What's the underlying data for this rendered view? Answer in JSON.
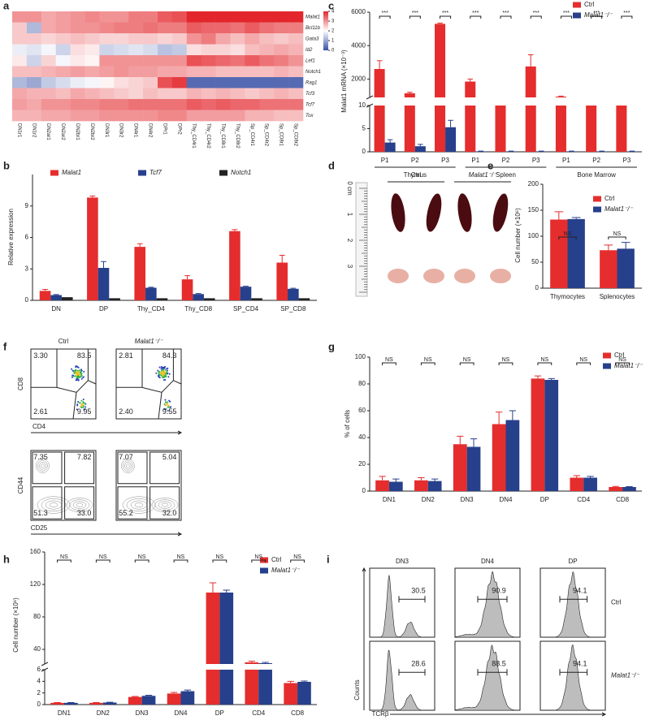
{
  "panel_labels": [
    "a",
    "b",
    "c",
    "d",
    "e",
    "f",
    "g",
    "h",
    "i"
  ],
  "chart_data": [
    {
      "type": "heatmap",
      "rows": [
        "Malat1",
        "Bcl11b",
        "Gata3",
        "Id2",
        "Lef1",
        "Notch1",
        "Rag1",
        "Tcf3",
        "Tcf7",
        "Tox"
      ],
      "columns": [
        "DN1r1",
        "DN1r2",
        "DN2ar1",
        "DN2ar2",
        "DN2br1",
        "DN2br2",
        "DN3r1",
        "DN3r2",
        "DN4r1",
        "DN4r2",
        "DPr1",
        "DPr2",
        "Thy_CD4r1",
        "Thy_CD4r2",
        "Thy_CD8r1",
        "Thy_CD8r2",
        "Sp_CD4r1",
        "Sp_CD4r2",
        "Sp_CD8r1",
        "Sp_CD8r2"
      ],
      "values": [
        [
          3,
          3,
          2.8,
          2.9,
          3,
          3.1,
          3,
          3,
          3.2,
          3.2,
          3.5,
          3.6,
          4,
          4,
          4,
          4,
          4,
          4,
          4,
          4
        ],
        [
          2.5,
          1.2,
          2.8,
          2.9,
          3,
          3,
          3.1,
          3.2,
          3.2,
          3.3,
          3.2,
          3.2,
          3.5,
          3.4,
          3.4,
          3.3,
          3.5,
          3.3,
          3.2,
          3.2
        ],
        [
          2.5,
          2.5,
          2.4,
          2.5,
          2.6,
          2.5,
          2.4,
          2.4,
          2.5,
          2.5,
          2.4,
          2.5,
          3,
          3.2,
          2.8,
          2.6,
          2.8,
          2.6,
          2.5,
          2.6
        ],
        [
          1.8,
          1.7,
          1.9,
          1.5,
          2.3,
          2.2,
          1.5,
          1.6,
          1.7,
          1.6,
          1.3,
          1.4,
          2.3,
          2.4,
          2.4,
          2.3,
          2.6,
          2.7,
          2.8,
          2.7
        ],
        [
          2.2,
          1.5,
          2.4,
          1.9,
          2.2,
          2.1,
          3,
          3,
          3,
          3,
          3,
          3,
          3.6,
          3.5,
          3.4,
          3.3,
          3.5,
          3.3,
          3.2,
          3
        ],
        [
          2.6,
          2.6,
          2.7,
          2.8,
          2.9,
          2.8,
          2.9,
          3,
          2.9,
          2.9,
          2.8,
          2.8,
          2.7,
          2.7,
          2.6,
          2.6,
          2.6,
          2.6,
          2.7,
          2.6
        ],
        [
          1.2,
          1,
          1.4,
          1.6,
          1.8,
          1.9,
          2.1,
          2.3,
          2.4,
          2.5,
          3.6,
          3.8,
          0.3,
          0.3,
          0.3,
          0.3,
          0.3,
          0.3,
          0.3,
          0.3
        ],
        [
          2.8,
          2.7,
          2.7,
          2.6,
          2.8,
          2.7,
          2.6,
          2.5,
          2.4,
          2.6,
          2.5,
          2.5,
          2.7,
          2.6,
          2.7,
          2.6,
          2.5,
          2.6,
          2.7,
          2.6
        ],
        [
          2.9,
          2.8,
          3,
          3,
          3.1,
          3.1,
          3.2,
          3.2,
          3.3,
          3.3,
          3.3,
          3.3,
          3.5,
          3.4,
          3.5,
          3.4,
          3.4,
          3.3,
          3.3,
          3.3
        ],
        [
          2.7,
          2.7,
          2.8,
          2.8,
          2.9,
          2.9,
          3,
          3,
          3,
          3,
          3.1,
          3.1,
          2.9,
          2.9,
          2.9,
          2.9,
          2.7,
          2.7,
          2.6,
          2.6
        ]
      ],
      "zlim": [
        0,
        4
      ],
      "zticks": [
        0,
        1,
        2,
        3,
        4
      ],
      "colors": [
        "#3850a5",
        "#ffffff",
        "#e3262b"
      ]
    },
    {
      "type": "bar",
      "y_label": "Relative expression",
      "categories": [
        "DN",
        "DP",
        "Thy_CD4",
        "Thy_CD8",
        "SP_CD4",
        "SP_CD8"
      ],
      "series": [
        {
          "name": "Malat1",
          "color": "#e52d2d",
          "values": [
            0.9,
            9.8,
            5.1,
            2.0,
            6.6,
            3.6
          ],
          "errors": [
            0.15,
            0.15,
            0.3,
            0.35,
            0.15,
            0.7
          ]
        },
        {
          "name": "Tcf7",
          "color": "#27408b",
          "values": [
            0.5,
            3.1,
            1.2,
            0.6,
            1.3,
            1.1
          ],
          "errors": [
            0.05,
            0.6,
            0.05,
            0.05,
            0.05,
            0.05
          ]
        },
        {
          "name": "Notch1",
          "color": "#222222",
          "values": [
            0.3,
            0.2,
            0.2,
            0.2,
            0.2,
            0.2
          ]
        }
      ],
      "ylim": [
        0,
        12
      ],
      "yticks": [
        0,
        3,
        6,
        9
      ]
    },
    {
      "type": "bar",
      "y_label": "Malat1 mRNA (×10⁻³)",
      "categories": [
        "P1",
        "P2",
        "P3",
        "P1",
        "P2",
        "P3",
        "P1",
        "P2",
        "P3"
      ],
      "groups": [
        "Thymus",
        "Spleen",
        "Bone Marrow"
      ],
      "series": [
        {
          "name": "Ctrl",
          "color": "#e52d2d",
          "values": [
            2600,
            1150,
            5300,
            1850,
            650,
            2750,
            950,
            850,
            750
          ],
          "errors": [
            500,
            60,
            50,
            150,
            100,
            700,
            30,
            20,
            30
          ]
        },
        {
          "name": "Malat1⁻/⁻",
          "color": "#27408b",
          "values": [
            2,
            1.2,
            5.3,
            0.1,
            0.1,
            0.1,
            0.1,
            0.1,
            0.1
          ],
          "errors": [
            0.6,
            0.4,
            1.5,
            0.05,
            0.05,
            0.05,
            0.05,
            0.05,
            0.05
          ]
        }
      ],
      "broken_ylim": [
        [
          0,
          10
        ],
        [
          900,
          6000
        ]
      ],
      "yticks": [
        0,
        5,
        10,
        2000,
        4000,
        6000
      ],
      "annotations": [
        "***",
        "***",
        "***",
        "***",
        "***",
        "***",
        "***",
        "***",
        "***"
      ]
    },
    {
      "type": "bar",
      "y_label": "Cell number (×10⁶)",
      "categories": [
        "Thymocytes",
        "Splenocytes"
      ],
      "series": [
        {
          "name": "Ctrl",
          "color": "#e52d2d",
          "values": [
            132,
            73
          ],
          "errors": [
            15,
            10
          ]
        },
        {
          "name": "Malat1⁻/⁻",
          "color": "#27408b",
          "values": [
            133,
            76
          ],
          "errors": [
            3,
            12
          ]
        }
      ],
      "ylim": [
        0,
        200
      ],
      "yticks": [
        0,
        50,
        100,
        150,
        200
      ],
      "annotations": [
        "NS",
        "NS"
      ]
    },
    {
      "type": "bar",
      "y_label": "% of cells",
      "categories": [
        "DN1",
        "DN2",
        "DN3",
        "DN4",
        "DP",
        "CD4",
        "CD8"
      ],
      "series": [
        {
          "name": "Ctrl",
          "color": "#e52d2d",
          "values": [
            8,
            8,
            35,
            50,
            84,
            10,
            3
          ],
          "errors": [
            3,
            2,
            6,
            9,
            2,
            1.5,
            0.5
          ]
        },
        {
          "name": "Malat1⁻/⁻",
          "color": "#27408b",
          "values": [
            7,
            7.5,
            33,
            53,
            83,
            10,
            3
          ],
          "errors": [
            2,
            1.5,
            6,
            7,
            1,
            1,
            0.3
          ]
        }
      ],
      "ylim": [
        0,
        100
      ],
      "yticks": [
        0,
        20,
        40,
        60,
        80,
        100
      ],
      "annotations": [
        "NS",
        "NS",
        "NS",
        "NS",
        "NS",
        "NS",
        "NS"
      ]
    },
    {
      "type": "bar",
      "y_label": "Cell number (×10⁶)",
      "categories": [
        "DN1",
        "DN2",
        "DN3",
        "DN4",
        "DP",
        "CD4",
        "CD8"
      ],
      "series": [
        {
          "name": "Ctrl",
          "color": "#e52d2d",
          "values": [
            0.3,
            0.3,
            1.3,
            1.9,
            110,
            24,
            3.7
          ],
          "errors": [
            0.05,
            0.05,
            0.1,
            0.2,
            12,
            1.5,
            0.3
          ]
        },
        {
          "name": "Malat1⁻/⁻",
          "color": "#27408b",
          "values": [
            0.3,
            0.35,
            1.5,
            2.3,
            110,
            23,
            3.9
          ],
          "errors": [
            0.05,
            0.05,
            0.1,
            0.2,
            3,
            1,
            0.15
          ]
        }
      ],
      "broken_ylim": [
        [
          0,
          6
        ],
        [
          22,
          160
        ]
      ],
      "yticks": [
        0,
        2,
        4,
        6,
        40,
        80,
        120,
        160
      ],
      "annotations": [
        "NS",
        "NS",
        "NS",
        "NS",
        "NS",
        "NS",
        "NS"
      ]
    }
  ],
  "photo": {
    "groups": [
      "Ctrl",
      "Malat1⁻/⁻"
    ],
    "ruler_labels": [
      "0 cm",
      "1",
      "2",
      "3"
    ]
  },
  "flow": {
    "columns": [
      "Ctrl",
      "Malat1⁻/⁻"
    ],
    "plots": [
      {
        "x_label": "CD4",
        "y_label": "CD8",
        "gates": [
          [
            "3.30",
            "83.5",
            "2.61",
            "9.95"
          ],
          [
            "2.81",
            "84.3",
            "2.40",
            "9.55"
          ]
        ]
      },
      {
        "x_label": "CD25",
        "y_label": "CD44",
        "gates": [
          [
            "7.35",
            "7.82",
            "51.3",
            "33.0"
          ],
          [
            "7.07",
            "5.04",
            "55.2",
            "32.0"
          ]
        ]
      }
    ]
  },
  "histograms": {
    "columns": [
      "DN3",
      "DN4",
      "DP"
    ],
    "rows": [
      "Ctrl",
      "Malat1⁻/⁻"
    ],
    "gates": [
      [
        "30.5",
        "90.9",
        "94.1"
      ],
      [
        "28.6",
        "88.5",
        "94.1"
      ]
    ],
    "y_label": "Counts",
    "x_label": "TCRβ"
  }
}
